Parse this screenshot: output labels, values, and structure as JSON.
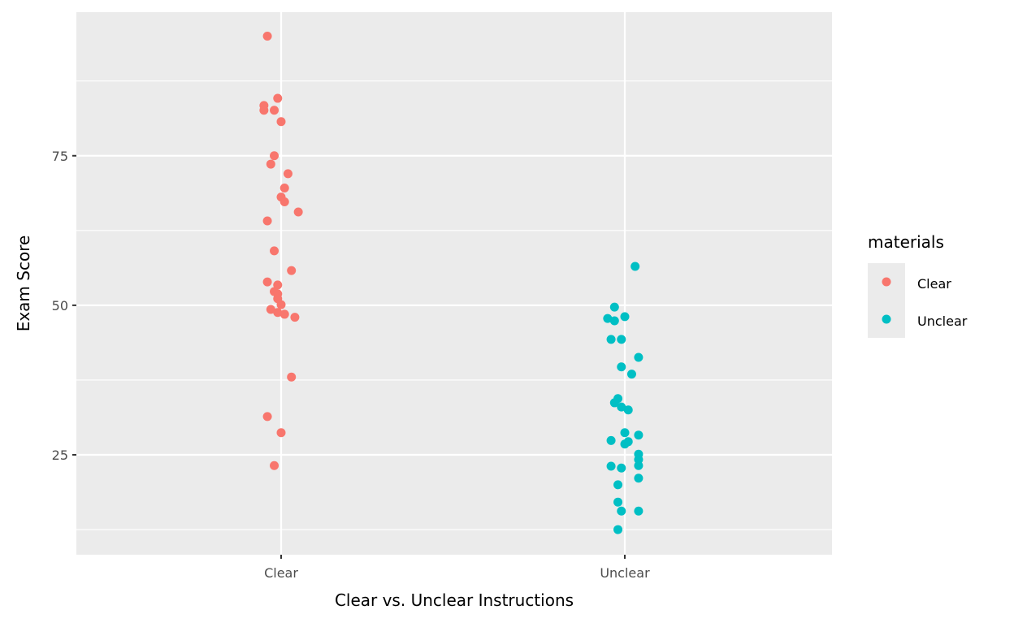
{
  "chart_data": {
    "type": "scatter",
    "subtype": "jitter",
    "title": "",
    "xlabel": "Clear vs. Unclear Instructions",
    "ylabel": "Exam Score",
    "categories": [
      "Clear",
      "Unclear"
    ],
    "yticks": [
      25,
      50,
      75
    ],
    "ylim": [
      8.3,
      99.0
    ],
    "grid": true,
    "legend": {
      "title": "materials",
      "position": "right",
      "entries": [
        "Clear",
        "Unclear"
      ]
    },
    "colors": {
      "Clear": "#F8766D",
      "Unclear": "#00BFC4",
      "panel": "#EBEBEB",
      "grid": "#FFFFFF"
    },
    "series": [
      {
        "name": "Clear",
        "points": [
          {
            "x": 0.96,
            "y": 95.0
          },
          {
            "x": 0.99,
            "y": 84.6
          },
          {
            "x": 0.95,
            "y": 83.4
          },
          {
            "x": 0.95,
            "y": 82.6
          },
          {
            "x": 0.98,
            "y": 82.6
          },
          {
            "x": 1.0,
            "y": 80.7
          },
          {
            "x": 0.98,
            "y": 75.0
          },
          {
            "x": 0.97,
            "y": 73.6
          },
          {
            "x": 1.02,
            "y": 72.0
          },
          {
            "x": 1.01,
            "y": 69.6
          },
          {
            "x": 1.0,
            "y": 68.1
          },
          {
            "x": 1.01,
            "y": 67.3
          },
          {
            "x": 1.05,
            "y": 65.6
          },
          {
            "x": 0.96,
            "y": 64.1
          },
          {
            "x": 0.98,
            "y": 59.1
          },
          {
            "x": 1.03,
            "y": 55.8
          },
          {
            "x": 0.96,
            "y": 53.9
          },
          {
            "x": 0.99,
            "y": 53.4
          },
          {
            "x": 0.98,
            "y": 52.3
          },
          {
            "x": 0.99,
            "y": 51.9
          },
          {
            "x": 0.99,
            "y": 51.1
          },
          {
            "x": 1.0,
            "y": 50.1
          },
          {
            "x": 0.97,
            "y": 49.3
          },
          {
            "x": 0.99,
            "y": 48.8
          },
          {
            "x": 1.01,
            "y": 48.5
          },
          {
            "x": 1.04,
            "y": 48.0
          },
          {
            "x": 1.03,
            "y": 38.0
          },
          {
            "x": 0.96,
            "y": 31.4
          },
          {
            "x": 1.0,
            "y": 28.7
          },
          {
            "x": 0.98,
            "y": 23.2
          }
        ]
      },
      {
        "name": "Unclear",
        "points": [
          {
            "x": 2.03,
            "y": 56.5
          },
          {
            "x": 1.97,
            "y": 49.7
          },
          {
            "x": 1.95,
            "y": 47.8
          },
          {
            "x": 2.0,
            "y": 48.1
          },
          {
            "x": 1.97,
            "y": 47.4
          },
          {
            "x": 1.96,
            "y": 44.3
          },
          {
            "x": 1.99,
            "y": 44.3
          },
          {
            "x": 2.04,
            "y": 41.3
          },
          {
            "x": 1.99,
            "y": 39.7
          },
          {
            "x": 2.02,
            "y": 38.5
          },
          {
            "x": 1.98,
            "y": 34.4
          },
          {
            "x": 1.97,
            "y": 33.7
          },
          {
            "x": 1.99,
            "y": 33.0
          },
          {
            "x": 2.01,
            "y": 32.5
          },
          {
            "x": 2.0,
            "y": 28.7
          },
          {
            "x": 2.04,
            "y": 28.3
          },
          {
            "x": 1.96,
            "y": 27.4
          },
          {
            "x": 2.01,
            "y": 27.2
          },
          {
            "x": 2.0,
            "y": 26.8
          },
          {
            "x": 2.04,
            "y": 25.1
          },
          {
            "x": 2.04,
            "y": 24.2
          },
          {
            "x": 2.04,
            "y": 23.2
          },
          {
            "x": 1.96,
            "y": 23.1
          },
          {
            "x": 1.99,
            "y": 22.8
          },
          {
            "x": 2.04,
            "y": 21.1
          },
          {
            "x": 1.98,
            "y": 20.0
          },
          {
            "x": 1.98,
            "y": 17.1
          },
          {
            "x": 1.99,
            "y": 15.6
          },
          {
            "x": 2.04,
            "y": 15.6
          },
          {
            "x": 1.98,
            "y": 12.5
          }
        ]
      }
    ]
  }
}
